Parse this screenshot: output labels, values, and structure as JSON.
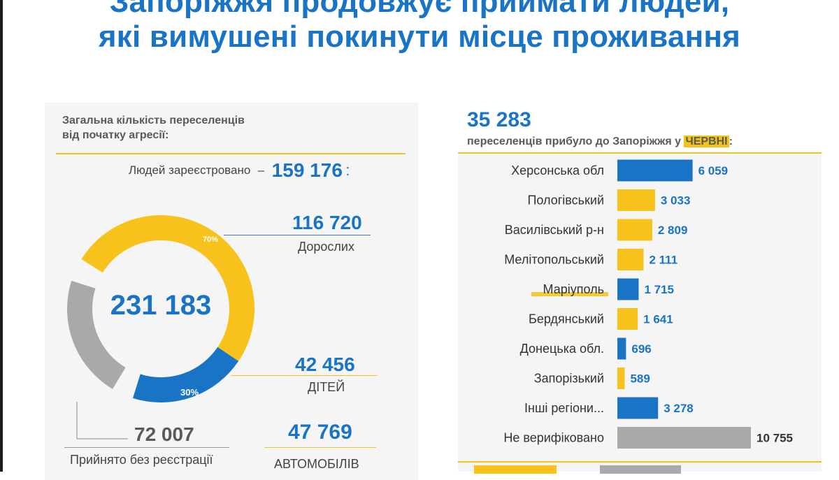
{
  "title": {
    "line1": "Запоріжжя продовжує приймати людей,",
    "line2": "які вимушені покинути місце проживання"
  },
  "left": {
    "heading_line1": "Загальна кількість переселенців",
    "heading_line2": "від початку агресії:",
    "registered_label": "Людей зареєстровано",
    "registered_value": "159 176",
    "total": "231 183",
    "adults_value": "116 720",
    "adults_label": "Дорослих",
    "children_value": "42 456",
    "children_label": "ДІТЕЙ",
    "unregistered_value": "72 007",
    "unregistered_label": "Прийнято без реєстрації",
    "cars_value": "47 769",
    "cars_label": "АВТОМОБІЛІВ"
  },
  "right": {
    "total": "35 283",
    "subtitle_prefix": "переселенців прибуло до Запоріжжя у ",
    "subtitle_month": "ЧЕРВНІ",
    "subtitle_suffix": ":"
  },
  "colors": {
    "blue": "#1a74c6",
    "yellow": "#f6c21b",
    "grey": "#a9a9a9"
  },
  "chart_data": [
    {
      "type": "pie",
      "variant": "donut",
      "slices": [
        {
          "label": "70%",
          "value": 70,
          "color": "#f6c21b"
        },
        {
          "label": "30%",
          "value": 30,
          "color": "#1a74c6"
        },
        {
          "value": 31.1,
          "color": "#a9a9a9"
        }
      ]
    },
    {
      "type": "bar",
      "orientation": "horizontal",
      "categories": [
        "Херсонська обл",
        "Пологівський",
        "Василівський р-н",
        "Мелітопольський",
        "Маріуполь",
        "Бердянський",
        "Донецька обл.",
        "Запорізький",
        "Інші регіони...",
        "Не верифіковано"
      ],
      "values": [
        6059,
        3033,
        2809,
        2111,
        1715,
        1641,
        696,
        589,
        3278,
        10755
      ],
      "value_labels": [
        "6 059",
        "3 033",
        "2 809",
        "2 111",
        "1 715",
        "1 641",
        "696",
        "589",
        "3 278",
        "10 755"
      ],
      "colors": [
        "#1a74c6",
        "#f6c21b",
        "#f6c21b",
        "#f6c21b",
        "#1a74c6",
        "#f6c21b",
        "#1a74c6",
        "#f6c21b",
        "#1a74c6",
        "#a9a9a9"
      ]
    }
  ]
}
